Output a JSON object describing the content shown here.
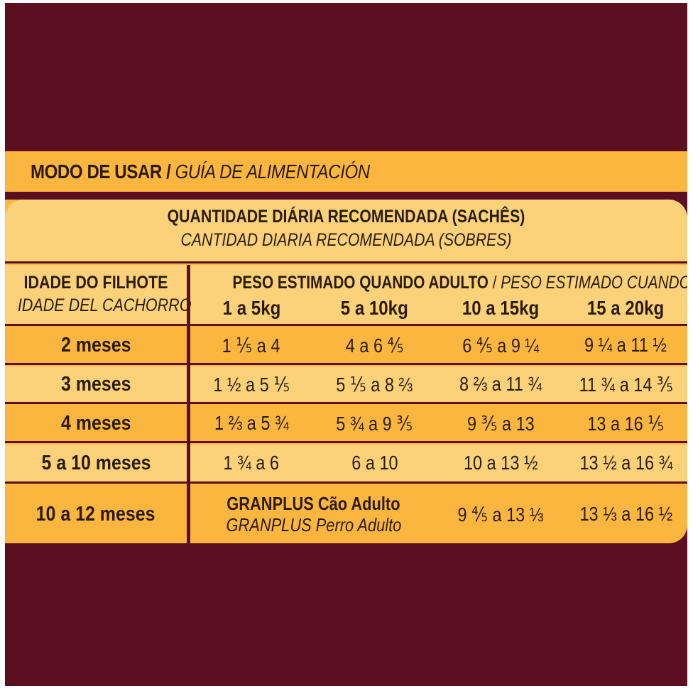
{
  "banner": {
    "pt": "MODO DE USAR",
    "separator": " / ",
    "es": "GUÍA DE ALIMENTACIÓN"
  },
  "header": {
    "pt": "QUANTIDADE DIÁRIA RECOMENDADA (SACHÊS)",
    "es": "CANTIDAD DIARIA RECOMENDADA (SOBRES)"
  },
  "columns": {
    "age_pt": "IDADE DO FILHOTE",
    "age_es": "IDADE DEL CACHORRO",
    "weight_pt": "PESO ESTIMADO QUANDO ADULTO",
    "weight_sep": " / ",
    "weight_es": "PESO ESTIMADO CUANDO ADULTO",
    "weights": [
      "1 a 5kg",
      "5 a 10kg",
      "10 a 15kg",
      "15 a 20kg"
    ]
  },
  "rows": [
    {
      "age": "2 meses",
      "values": [
        "1 ⅕ a 4",
        "4 a 6 ⅘",
        "6 ⅘ a 9 ¼",
        "9 ¼ a 11 ½"
      ]
    },
    {
      "age": "3 meses",
      "values": [
        "1 ½ a 5 ⅕",
        "5 ⅕ a 8 ⅔",
        "8 ⅔ a 11 ¾",
        "11 ¾ a 14 ⅗"
      ]
    },
    {
      "age": "4 meses",
      "values": [
        "1 ⅔ a 5 ¾",
        "5 ¾ a 9 ⅗",
        "9 ⅗ a 13",
        "13 a 16 ⅕"
      ]
    },
    {
      "age": "5 a 10 meses",
      "values": [
        "1 ¾ a 6",
        "6 a 10",
        "10 a 13 ½",
        "13 ½ a 16 ¾"
      ]
    },
    {
      "age": "10 a 12 meses",
      "adult_pt": "GRANPLUS Cão Adulto",
      "adult_es": "GRANPLUS Perro Adulto",
      "values": [
        "",
        "",
        "9 ⅘ a 13 ⅓",
        "13 ⅓ a 16 ½"
      ]
    }
  ],
  "colors": {
    "background": "#5c0f21",
    "orange": "#fbb63f",
    "light": "#fbd279",
    "text": "#2a1b0e"
  }
}
